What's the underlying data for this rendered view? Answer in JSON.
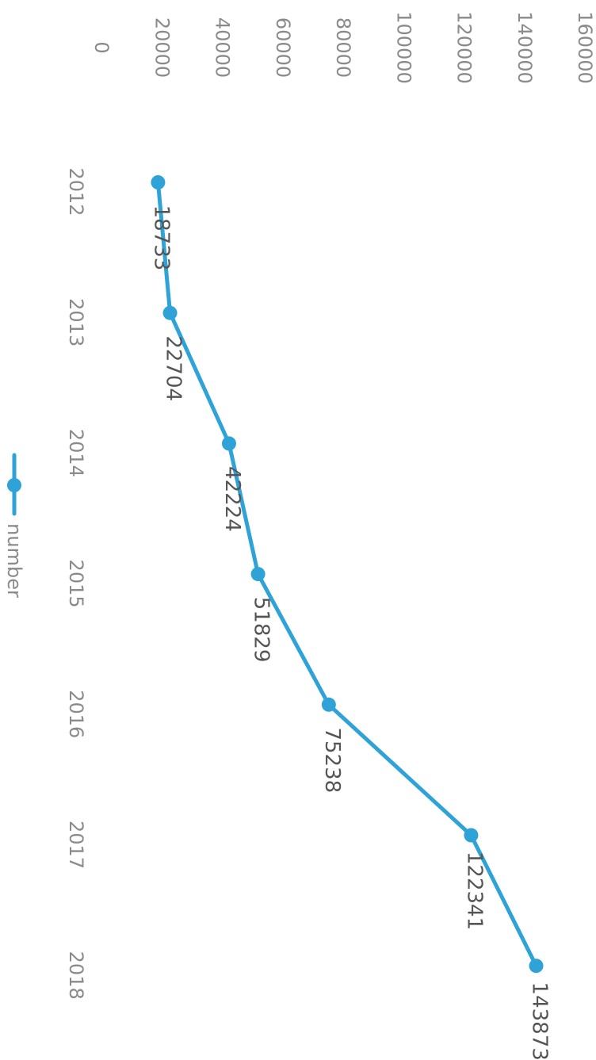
{
  "chart_data": {
    "type": "line",
    "categories": [
      "2012",
      "2013",
      "2014",
      "2015",
      "2016",
      "2017",
      "2018"
    ],
    "series": [
      {
        "name": "number",
        "values": [
          18733,
          22704,
          42224,
          51829,
          75238,
          122341,
          143873
        ],
        "color": "#2fa3d8"
      }
    ],
    "ylim": [
      0,
      160000
    ],
    "yticks": [
      "0",
      "20000",
      "40000",
      "60000",
      "80000",
      "100000",
      "120000",
      "140000",
      "160000"
    ],
    "data_labels": [
      "18733",
      "22704",
      "42224",
      "51829",
      "75238",
      "122341",
      "143873"
    ],
    "legend": {
      "position": "bottom",
      "label": "number"
    },
    "grid": false,
    "orientation": "rotated-90-clockwise"
  }
}
